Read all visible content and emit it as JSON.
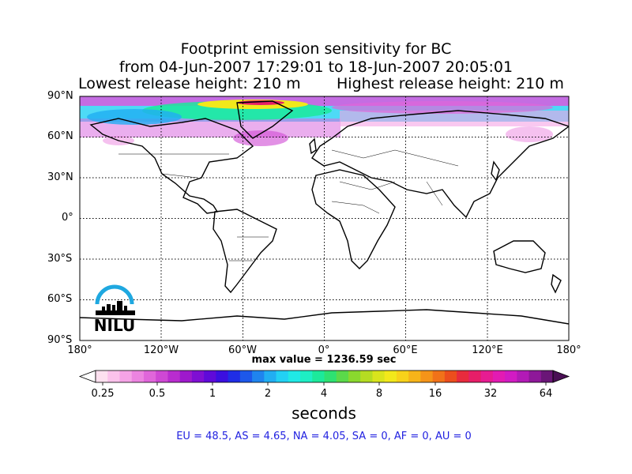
{
  "title": {
    "line1": "Footprint emission sensitivity for BC",
    "line2": "from 04-Jun-2007 17:29:01 to 18-Jun-2007 20:05:01",
    "lowest_release": "Lowest release height: 210 m",
    "highest_release": "Highest release height: 210 m"
  },
  "axes": {
    "lat_labels": [
      "90°N",
      "60°N",
      "30°N",
      "0°",
      "30°S",
      "60°S",
      "90°S"
    ],
    "lon_labels": [
      "180°",
      "120°W",
      "60°W",
      "0°",
      "60°E",
      "120°E",
      "180°"
    ]
  },
  "max_value": "max value = 1236.59 sec",
  "colorbar": {
    "ticks": [
      "0.25",
      "0.5",
      "1",
      "2",
      "4",
      "8",
      "16",
      "32",
      "64"
    ],
    "unit": "seconds",
    "colors": [
      "#fde0ef",
      "#fbc2eb",
      "#f5a3e6",
      "#ec84e0",
      "#e066da",
      "#cf48d4",
      "#b92ccf",
      "#9e19cc",
      "#7f0fd3",
      "#5f0ad9",
      "#3b0fe0",
      "#1f2de6",
      "#1d58ea",
      "#1f84ee",
      "#21aef2",
      "#22d1f4",
      "#20e9e6",
      "#1eeec4",
      "#1ce99b",
      "#2ee172",
      "#5bd94a",
      "#8ad82e",
      "#b5dc22",
      "#d9e41d",
      "#f2e81b",
      "#f8d21a",
      "#f7b419",
      "#f59419",
      "#f17219",
      "#ec4e1d",
      "#e82b3d",
      "#e71e68",
      "#e71c92",
      "#e31bb3",
      "#d21bc3",
      "#b21ab6",
      "#8e1899",
      "#6a1677"
    ]
  },
  "regions": "EU = 48.5,  AS = 4.65,  NA = 4.05,  SA = 0,  AF = 0,  AU = 0",
  "logo": {
    "text": "NILU",
    "arc_color": "#1fa8e0"
  }
}
